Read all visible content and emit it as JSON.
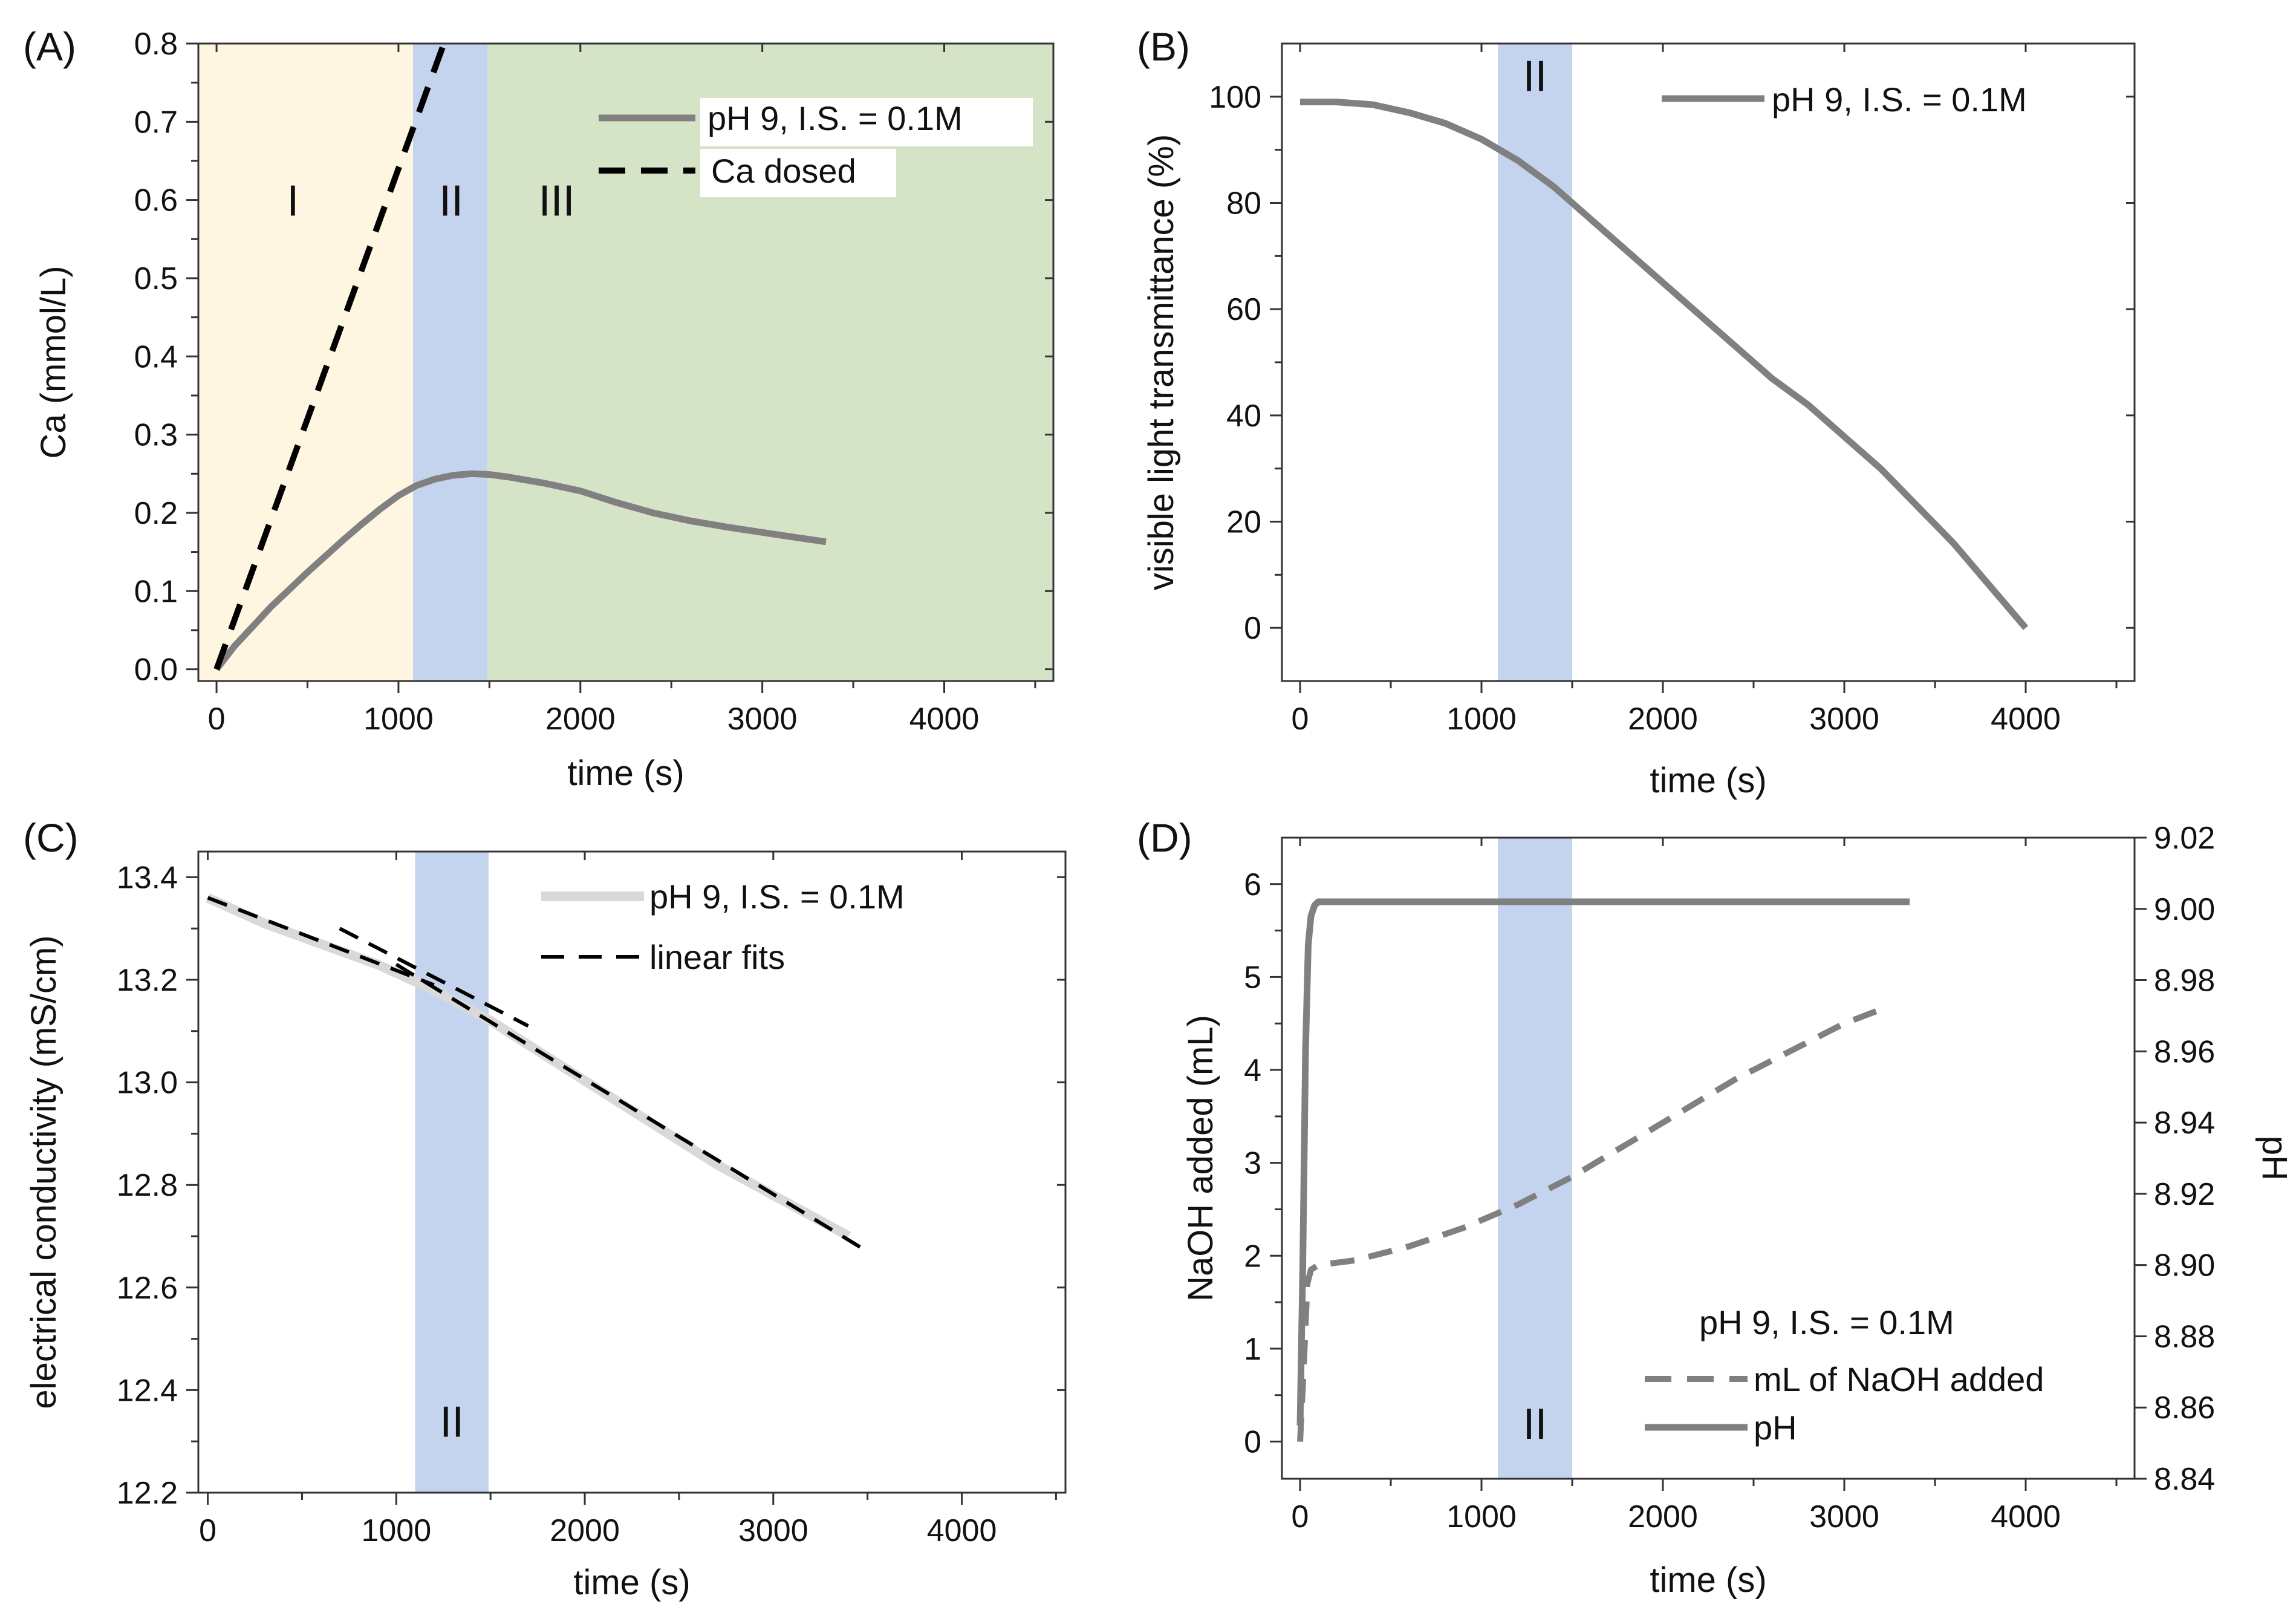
{
  "chart_data": [
    {
      "panel": "(A)",
      "type": "line",
      "xlabel": "time (s)",
      "ylabel": "Ca (mmol/L)",
      "xlim": [
        -100,
        4600
      ],
      "ylim": [
        -0.015,
        0.8
      ],
      "xticks": [
        0,
        1000,
        2000,
        3000,
        4000
      ],
      "xtick_labels": [
        "0",
        "1000",
        "2000",
        "3000",
        "4000"
      ],
      "yticks": [
        0.0,
        0.1,
        0.2,
        0.3,
        0.4,
        0.5,
        0.6,
        0.7,
        0.8
      ],
      "ytick_labels": [
        "0.0",
        "0.1",
        "0.2",
        "0.3",
        "0.4",
        "0.5",
        "0.6",
        "0.7",
        "0.8"
      ],
      "regions": [
        {
          "label": "I",
          "x0": -100,
          "x1": 1080,
          "color": "#fef6e0",
          "label_x": 420,
          "label_y": 0.6
        },
        {
          "label": "II",
          "x0": 1080,
          "x1": 1490,
          "color": "#c5d4ee",
          "label_x": 1290,
          "label_y": 0.6
        },
        {
          "label": "III",
          "x0": 1490,
          "x1": 4600,
          "color": "#d5e4c6",
          "label_x": 1870,
          "label_y": 0.6
        }
      ],
      "legend_position": "top-right",
      "series": [
        {
          "name": "pH 9, I.S. = 0.1M",
          "style": "solid",
          "color": "#808080",
          "x": [
            0,
            100,
            200,
            300,
            400,
            500,
            600,
            700,
            800,
            900,
            1000,
            1100,
            1200,
            1300,
            1400,
            1500,
            1600,
            1800,
            2000,
            2200,
            2400,
            2600,
            2800,
            3000,
            3200,
            3350
          ],
          "y": [
            0.0,
            0.03,
            0.055,
            0.08,
            0.102,
            0.124,
            0.145,
            0.166,
            0.186,
            0.205,
            0.222,
            0.235,
            0.243,
            0.248,
            0.25,
            0.249,
            0.246,
            0.238,
            0.228,
            0.213,
            0.2,
            0.19,
            0.182,
            0.175,
            0.168,
            0.163
          ]
        },
        {
          "name": "Ca dosed",
          "style": "dashed",
          "color": "#000000",
          "x": [
            0,
            1250
          ],
          "y": [
            0.0,
            0.8
          ]
        }
      ]
    },
    {
      "panel": "(B)",
      "type": "line",
      "xlabel": "time (s)",
      "ylabel": "visible light transmittance (%)",
      "xlim": [
        -100,
        4600
      ],
      "ylim": [
        -10,
        110
      ],
      "xticks": [
        0,
        1000,
        2000,
        3000,
        4000
      ],
      "xtick_labels": [
        "0",
        "1000",
        "2000",
        "3000",
        "4000"
      ],
      "yticks": [
        0,
        20,
        40,
        60,
        80,
        100
      ],
      "ytick_labels": [
        "0",
        "20",
        "40",
        "60",
        "80",
        "100"
      ],
      "regions": [
        {
          "label": "II",
          "x0": 1090,
          "x1": 1500,
          "color": "#c5d4ee",
          "label_x": 1295,
          "label_y": 104
        }
      ],
      "legend_position": "top-right",
      "series": [
        {
          "name": "pH 9, I.S. = 0.1M",
          "style": "solid",
          "color": "#808080",
          "x": [
            0,
            200,
            400,
            600,
            800,
            1000,
            1200,
            1400,
            1600,
            1800,
            2000,
            2200,
            2400,
            2600,
            2800,
            3000,
            3200,
            3400,
            3600,
            3800,
            4000
          ],
          "y": [
            99,
            99,
            98.5,
            97,
            95,
            92,
            88,
            83,
            77,
            71,
            65,
            59,
            53,
            47,
            42,
            36,
            30,
            23,
            16,
            8,
            0
          ]
        }
      ]
    },
    {
      "panel": "(C)",
      "type": "line",
      "xlabel": "time (s)",
      "ylabel": "electrical conductivity (mS/cm)",
      "xlim": [
        -50,
        4550
      ],
      "ylim": [
        12.2,
        13.45
      ],
      "xticks": [
        0,
        1000,
        2000,
        3000,
        4000
      ],
      "xtick_labels": [
        "0",
        "1000",
        "2000",
        "3000",
        "4000"
      ],
      "yticks": [
        12.2,
        12.4,
        12.6,
        12.8,
        13.0,
        13.2,
        13.4
      ],
      "ytick_labels": [
        "12.2",
        "12.4",
        "12.6",
        "12.8",
        "13.0",
        "13.2",
        "13.4"
      ],
      "regions": [
        {
          "label": "II",
          "x0": 1100,
          "x1": 1490,
          "color": "#c5d4ee",
          "label_x": 1295,
          "label_y": 12.34
        }
      ],
      "legend_position": "top-right",
      "series": [
        {
          "name": "pH 9, I.S. = 0.1M",
          "style": "solid",
          "color": "#d9d9d9",
          "x": [
            0,
            300,
            600,
            900,
            1200,
            1500,
            1800,
            2100,
            2400,
            2700,
            3000,
            3300,
            3400
          ],
          "y": [
            13.36,
            13.31,
            13.27,
            13.23,
            13.18,
            13.12,
            13.05,
            12.98,
            12.91,
            12.84,
            12.78,
            12.72,
            12.7
          ]
        },
        {
          "name": "linear fits",
          "style": "dashed",
          "color": "#000000",
          "x": [
            0,
            1200
          ],
          "y": [
            13.36,
            13.19
          ]
        },
        {
          "name": "linear fits",
          "style": "dashed",
          "color": "#000000",
          "x": [
            700,
            1700
          ],
          "y": [
            13.3,
            13.11
          ]
        },
        {
          "name": "linear fits",
          "style": "dashed",
          "color": "#000000",
          "x": [
            1000,
            3500
          ],
          "y": [
            13.23,
            12.67
          ]
        }
      ]
    },
    {
      "panel": "(D)",
      "type": "line",
      "xlabel": "time (s)",
      "ylabel": "NaOH added (mL)",
      "ylabel_right": "pH",
      "xlim": [
        -100,
        4600
      ],
      "ylim": [
        -0.4,
        6.5
      ],
      "ylim_right": [
        8.84,
        9.02
      ],
      "xticks": [
        0,
        1000,
        2000,
        3000,
        4000
      ],
      "xtick_labels": [
        "0",
        "1000",
        "2000",
        "3000",
        "4000"
      ],
      "yticks": [
        0,
        1,
        2,
        3,
        4,
        5,
        6
      ],
      "ytick_labels": [
        "0",
        "1",
        "2",
        "3",
        "4",
        "5",
        "6"
      ],
      "yticks_right": [
        8.84,
        8.86,
        8.88,
        8.9,
        8.92,
        8.94,
        8.96,
        8.98,
        9.0,
        9.02
      ],
      "ytick_labels_right": [
        "8.84",
        "8.86",
        "8.88",
        "8.90",
        "8.92",
        "8.94",
        "8.96",
        "8.98",
        "9.00",
        "9.02"
      ],
      "regions": [
        {
          "label": "II",
          "x0": 1090,
          "x1": 1500,
          "color": "#c5d4ee",
          "label_x": 1295,
          "label_y": 0.2
        }
      ],
      "legend_position": "bottom-right",
      "legend_title": "pH 9, I.S. = 0.1M",
      "series": [
        {
          "name": "mL of NaOH added",
          "style": "dashed",
          "color": "#808080",
          "axis": "left",
          "x": [
            0,
            20,
            40,
            60,
            100,
            300,
            600,
            900,
            1200,
            1500,
            1800,
            2100,
            2400,
            2700,
            3000,
            3200
          ],
          "y": [
            0.0,
            0.8,
            1.7,
            1.85,
            1.9,
            1.95,
            2.1,
            2.3,
            2.55,
            2.85,
            3.2,
            3.55,
            3.9,
            4.2,
            4.5,
            4.65
          ]
        },
        {
          "name": "pH",
          "style": "solid",
          "color": "#808080",
          "axis": "right",
          "x": [
            0,
            15,
            30,
            45,
            60,
            80,
            100,
            300,
            600,
            1000,
            1500,
            2000,
            2500,
            3000,
            3360
          ],
          "y": [
            8.855,
            8.9,
            8.96,
            8.99,
            8.998,
            9.001,
            9.002,
            9.002,
            9.002,
            9.002,
            9.002,
            9.002,
            9.002,
            9.002,
            9.002
          ]
        }
      ]
    }
  ]
}
